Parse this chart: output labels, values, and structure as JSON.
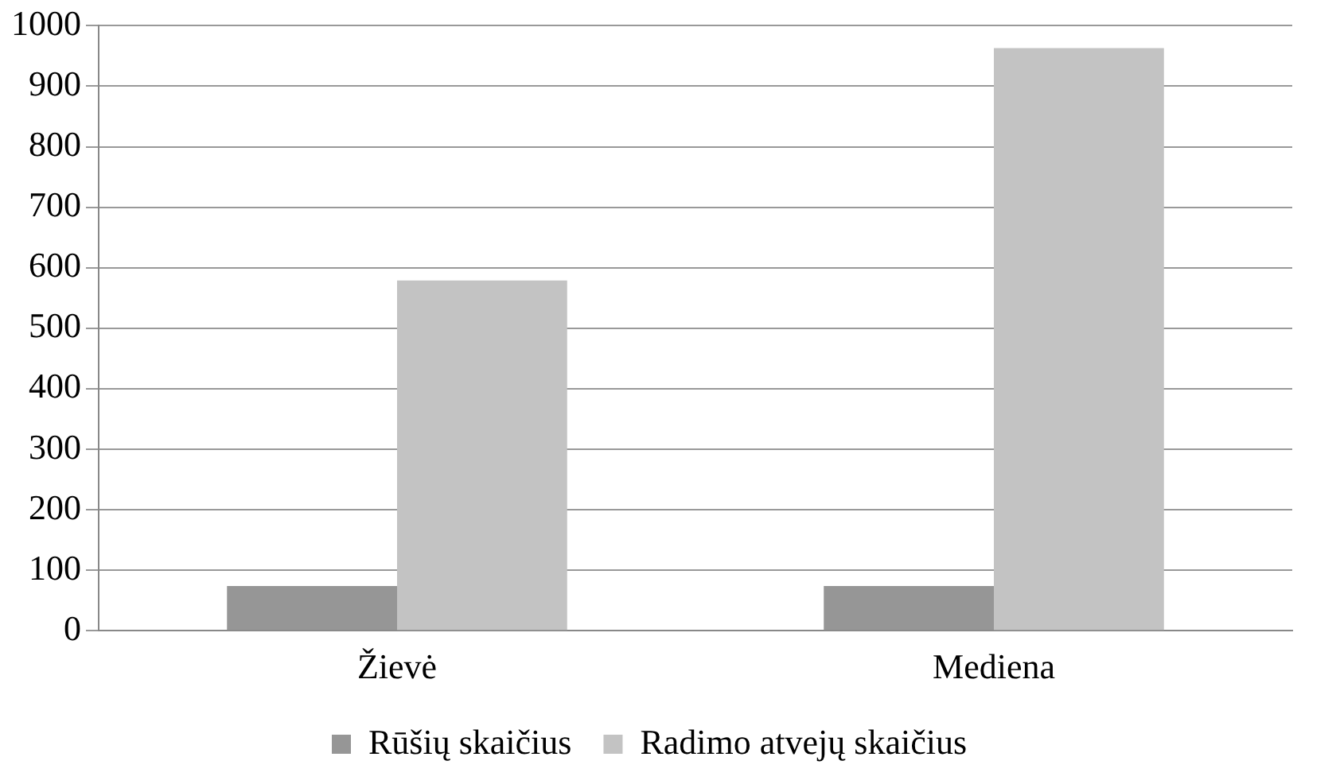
{
  "chart_data": {
    "type": "bar",
    "categories": [
      "Žievė",
      "Mediena"
    ],
    "series": [
      {
        "name": "Rūšių skaičius",
        "color": "#969696",
        "values": [
          74,
          74
        ]
      },
      {
        "name": "Radimo atvejų skaičius",
        "color": "#c3c3c3",
        "values": [
          579,
          963
        ]
      }
    ],
    "ylim": [
      0,
      1000
    ],
    "yticks": [
      0,
      100,
      200,
      300,
      400,
      500,
      600,
      700,
      800,
      900,
      1000
    ],
    "grid": "y",
    "legend": "bottom"
  }
}
